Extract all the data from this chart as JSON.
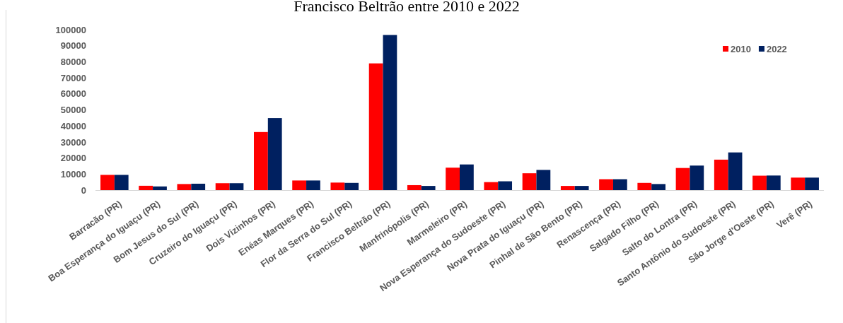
{
  "chart_data": {
    "type": "bar",
    "title": "Francisco Beltrão entre 2010 e 2022",
    "categories": [
      "Barracão (PR)",
      "Boa Esperança do Iguaçu (PR)",
      "Bom Jesus do Sul (PR)",
      "Cruzeiro do Iguaçu (PR)",
      "Dois Vizinhos (PR)",
      "Enéas Marques (PR)",
      "Flor da Serra do Sul (PR)",
      "Francisco Beltrão (PR)",
      "Manfrinópolis (PR)",
      "Marmeleiro (PR)",
      "Nova Esperança do Sudoeste (PR)",
      "Nova Prata do Iguaçu (PR)",
      "Pinhal de São Bento (PR)",
      "Renascença (PR)",
      "Salgado Filho (PR)",
      "Salto do Lontra (PR)",
      "Santo Antônio do Sudoeste (PR)",
      "São Jorge d'Oeste (PR)",
      "Verê (PR)"
    ],
    "series": [
      {
        "name": "2010",
        "color": "#ff0000",
        "values": [
          9500,
          2700,
          3800,
          4300,
          36200,
          6000,
          4700,
          79000,
          3100,
          14000,
          5000,
          10500,
          2600,
          6800,
          4500,
          13800,
          19000,
          9000,
          7800
        ]
      },
      {
        "name": "2022",
        "color": "#002060",
        "values": [
          9500,
          2300,
          4000,
          4300,
          44900,
          6000,
          4500,
          96700,
          2600,
          16000,
          5500,
          12600,
          2600,
          6800,
          3800,
          15300,
          23500,
          9100,
          7800
        ]
      }
    ],
    "ylim": [
      0,
      100000
    ],
    "yticks": [
      0,
      10000,
      20000,
      30000,
      40000,
      50000,
      60000,
      70000,
      80000,
      90000,
      100000
    ],
    "grid": false,
    "legend": "top right"
  }
}
